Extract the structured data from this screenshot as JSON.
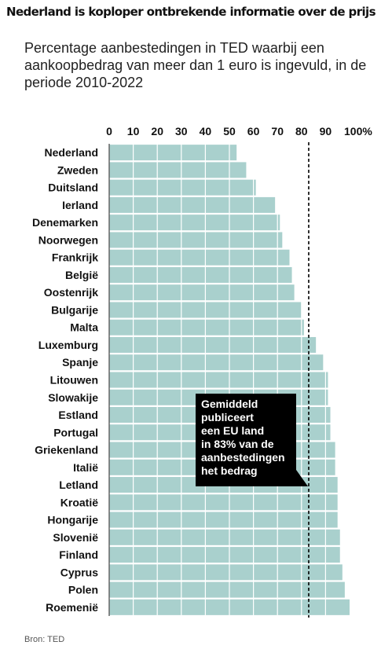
{
  "headline": "Nederland is koploper ontbrekende informatie over de prijs",
  "subtitle": "Percentage aanbestedingen in TED waarbij een aankoopbedrag van meer dan 1 euro is ingevuld, in de periode 2010-2022",
  "source": "Bron:  TED",
  "annotation": {
    "lines": [
      "Gemiddeld",
      "publiceert",
      "een EU land",
      "in 83% van de",
      "aanbestedingen",
      "het bedrag"
    ]
  },
  "colors": {
    "bar": "#a9d0cd",
    "reference_line": "#000000",
    "grid": "#ffffff"
  },
  "chart_data": {
    "type": "bar",
    "orientation": "horizontal",
    "categories": [
      "Nederland",
      "Zweden",
      "Duitsland",
      "Ierland",
      "Denemarken",
      "Noorwegen",
      "Frankrijk",
      "België",
      "Oostenrijk",
      "Bulgarije",
      "Malta",
      "Luxemburg",
      "Spanje",
      "Litouwen",
      "Slowakije",
      "Estland",
      "Portugal",
      "Griekenland",
      "Italië",
      "Letland",
      "Kroatië",
      "Hongarije",
      "Slovenië",
      "Finland",
      "Cyprus",
      "Polen",
      "Roemenië"
    ],
    "values": [
      53,
      57,
      61,
      69,
      71,
      72,
      75,
      76,
      77,
      80,
      81,
      86,
      89,
      91,
      91,
      92,
      92,
      94,
      94,
      95,
      95,
      95,
      96,
      96,
      97,
      98,
      100
    ],
    "x_ticks": [
      "0",
      "10",
      "20",
      "30",
      "40",
      "50",
      "60",
      "70",
      "80",
      "90",
      "100%"
    ],
    "xlim": [
      0,
      100
    ],
    "reference_line": 83,
    "grid": true
  }
}
